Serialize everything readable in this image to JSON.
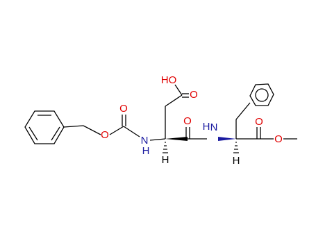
{
  "atoms": {
    "hydroxyl": "HO",
    "acid_carbonyl_o": "O",
    "carbamate_carbonyl_o": "O",
    "carbamate_ester_o": "O",
    "carbamate_n": "N",
    "carbamate_nh": "H",
    "alpha1_h": "H",
    "amide_carbonyl_o": "O",
    "amide_nh": "H",
    "amide_n": "N",
    "ester_carbonyl_o": "O",
    "ester_o": "O",
    "alpha2_h": "H"
  }
}
